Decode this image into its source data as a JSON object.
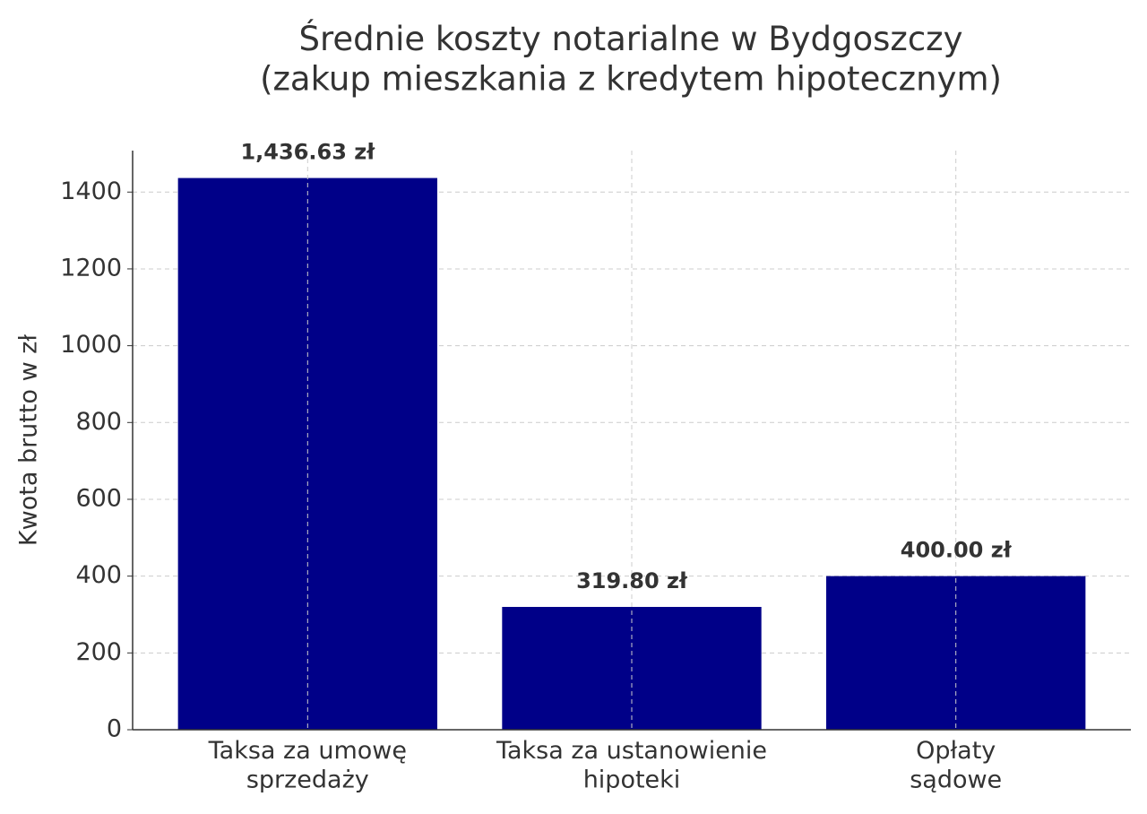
{
  "chart_data": {
    "type": "bar",
    "title": "Średnie koszty notarialne w Bydgoszczy\n(zakup mieszkania z kredytem hipotecznym)",
    "ylabel": "Kwota brutto w zł",
    "categories": [
      "Taksa za umowę\nsprzedaży",
      "Taksa za ustanowienie\nhipoteki",
      "Opłaty\nsądowe"
    ],
    "values": [
      1436.63,
      319.8,
      400
    ],
    "value_labels": [
      "1,436.63 zł",
      "319.80 zł",
      "400.00 zł"
    ],
    "color": "#000088",
    "ylim": [
      0,
      1508
    ],
    "yticks": [
      0,
      200,
      400,
      600,
      800,
      1000,
      1200,
      1400
    ],
    "grid": true
  }
}
